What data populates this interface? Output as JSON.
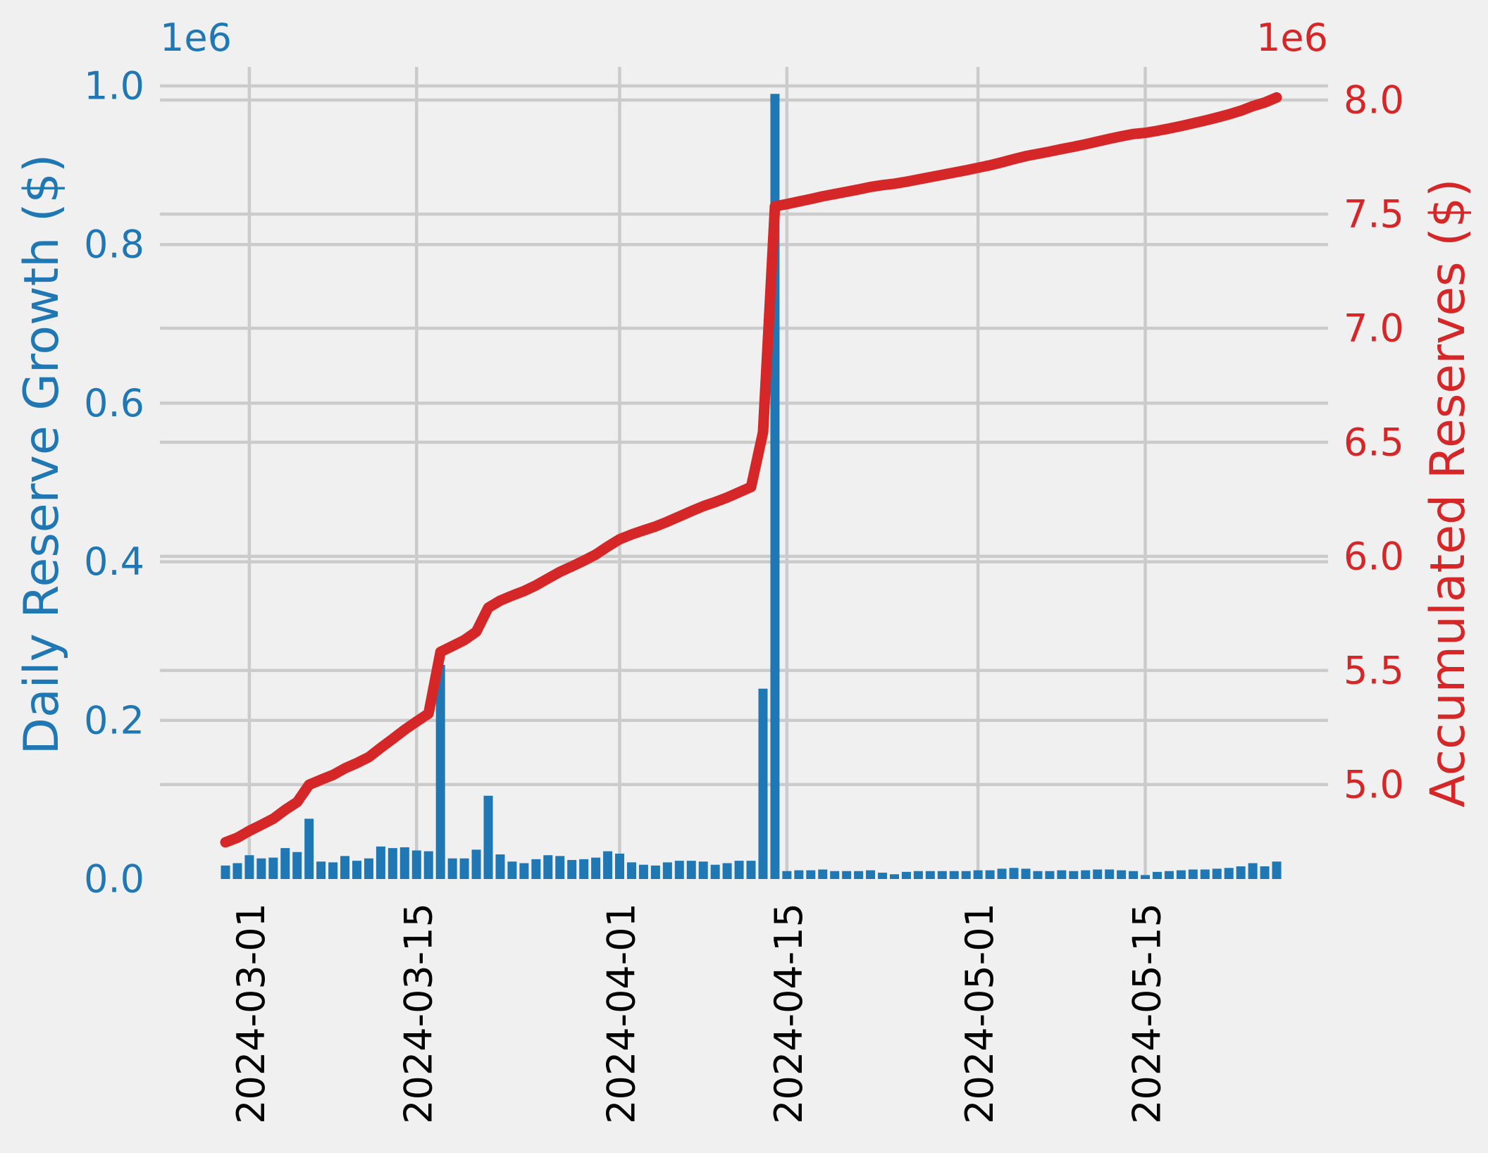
{
  "figure": {
    "background": "#f0f0f0",
    "grid_color": "#cbcbcb"
  },
  "left_axis": {
    "label": "Daily Reserve Growth ($)",
    "offset_label": "1e6",
    "color": "#1f77b4",
    "tick_labels": [
      "0.0",
      "0.2",
      "0.4",
      "0.6",
      "0.8",
      "1.0"
    ],
    "tick_values": [
      0,
      200000,
      400000,
      600000,
      800000,
      1000000
    ]
  },
  "right_axis": {
    "label": "Accumulated Reserves ($)",
    "offset_label": "1e6",
    "color": "#d62728",
    "tick_labels": [
      "5.0",
      "5.5",
      "6.0",
      "6.5",
      "7.0",
      "7.5",
      "8.0"
    ],
    "tick_values": [
      5000000,
      5500000,
      6000000,
      6500000,
      7000000,
      7500000,
      8000000
    ]
  },
  "x_axis": {
    "color": "#000000",
    "tick_labels": [
      "2024-03-01",
      "2024-03-15",
      "2024-04-01",
      "2024-04-15",
      "2024-05-01",
      "2024-05-15"
    ],
    "tick_indices": [
      2,
      16,
      33,
      47,
      63,
      77
    ]
  },
  "chart_data": {
    "type": "bar+line",
    "title": "",
    "xlabel": "",
    "grid": true,
    "left_ylim": [
      0,
      1024000
    ],
    "right_ylim": [
      4586000,
      8145000
    ],
    "x": [
      "2024-02-28",
      "2024-02-29",
      "2024-03-01",
      "2024-03-02",
      "2024-03-03",
      "2024-03-04",
      "2024-03-05",
      "2024-03-06",
      "2024-03-07",
      "2024-03-08",
      "2024-03-09",
      "2024-03-10",
      "2024-03-11",
      "2024-03-12",
      "2024-03-13",
      "2024-03-14",
      "2024-03-15",
      "2024-03-16",
      "2024-03-17",
      "2024-03-18",
      "2024-03-19",
      "2024-03-20",
      "2024-03-21",
      "2024-03-22",
      "2024-03-23",
      "2024-03-24",
      "2024-03-25",
      "2024-03-26",
      "2024-03-27",
      "2024-03-28",
      "2024-03-29",
      "2024-03-30",
      "2024-03-31",
      "2024-04-01",
      "2024-04-02",
      "2024-04-03",
      "2024-04-04",
      "2024-04-05",
      "2024-04-06",
      "2024-04-07",
      "2024-04-08",
      "2024-04-09",
      "2024-04-10",
      "2024-04-11",
      "2024-04-12",
      "2024-04-13",
      "2024-04-14",
      "2024-04-15",
      "2024-04-16",
      "2024-04-17",
      "2024-04-18",
      "2024-04-19",
      "2024-04-20",
      "2024-04-21",
      "2024-04-22",
      "2024-04-23",
      "2024-04-24",
      "2024-04-25",
      "2024-04-26",
      "2024-04-27",
      "2024-04-28",
      "2024-04-29",
      "2024-04-30",
      "2024-05-01",
      "2024-05-02",
      "2024-05-03",
      "2024-05-04",
      "2024-05-05",
      "2024-05-06",
      "2024-05-07",
      "2024-05-08",
      "2024-05-09",
      "2024-05-10",
      "2024-05-11",
      "2024-05-12",
      "2024-05-13",
      "2024-05-14",
      "2024-05-15",
      "2024-05-16",
      "2024-05-17",
      "2024-05-18",
      "2024-05-19",
      "2024-05-20",
      "2024-05-21",
      "2024-05-22",
      "2024-05-23",
      "2024-05-24",
      "2024-05-25",
      "2024-05-26"
    ],
    "series": [
      {
        "name": "Daily Reserve Growth ($)",
        "type": "bar",
        "axis": "left",
        "color": "#1f77b4",
        "values": [
          17000,
          20000,
          30000,
          26000,
          27000,
          39000,
          34000,
          76000,
          22000,
          21000,
          29000,
          23000,
          26000,
          41000,
          39000,
          40000,
          36000,
          35000,
          270000,
          26000,
          26000,
          37000,
          105000,
          31000,
          22000,
          20000,
          25000,
          30000,
          29000,
          24000,
          25000,
          27000,
          35000,
          32000,
          21000,
          18000,
          17000,
          21000,
          23000,
          23000,
          22000,
          18000,
          20000,
          23000,
          23000,
          240000,
          990000,
          10000,
          11000,
          11000,
          12000,
          10000,
          10000,
          10000,
          11000,
          8000,
          6000,
          9000,
          10000,
          10000,
          10000,
          10000,
          10000,
          11000,
          11000,
          13000,
          14000,
          13000,
          10000,
          10000,
          11000,
          10000,
          11000,
          12000,
          12000,
          11000,
          10000,
          5000,
          9000,
          10000,
          11000,
          12000,
          12000,
          13000,
          14000,
          16000,
          20000,
          16000,
          22000
        ]
      },
      {
        "name": "Accumulated Reserves ($)",
        "type": "line",
        "axis": "right",
        "color": "#d62728",
        "values": [
          4747000,
          4767000,
          4797000,
          4823000,
          4850000,
          4889000,
          4923000,
          4999000,
          5021000,
          5042000,
          5071000,
          5094000,
          5120000,
          5161000,
          5200000,
          5240000,
          5276000,
          5311000,
          5581000,
          5607000,
          5633000,
          5670000,
          5775000,
          5806000,
          5828000,
          5848000,
          5873000,
          5903000,
          5932000,
          5956000,
          5981000,
          6008000,
          6043000,
          6075000,
          6096000,
          6114000,
          6131000,
          6152000,
          6175000,
          6198000,
          6220000,
          6238000,
          6258000,
          6281000,
          6304000,
          6544000,
          7534000,
          7544000,
          7555000,
          7566000,
          7578000,
          7588000,
          7598000,
          7608000,
          7619000,
          7627000,
          7633000,
          7642000,
          7652000,
          7662000,
          7672000,
          7682000,
          7692000,
          7703000,
          7714000,
          7727000,
          7741000,
          7754000,
          7764000,
          7774000,
          7785000,
          7795000,
          7806000,
          7818000,
          7830000,
          7841000,
          7851000,
          7856000,
          7865000,
          7875000,
          7886000,
          7898000,
          7910000,
          7923000,
          7937000,
          7953000,
          7973000,
          7989000,
          8011000
        ]
      }
    ]
  }
}
